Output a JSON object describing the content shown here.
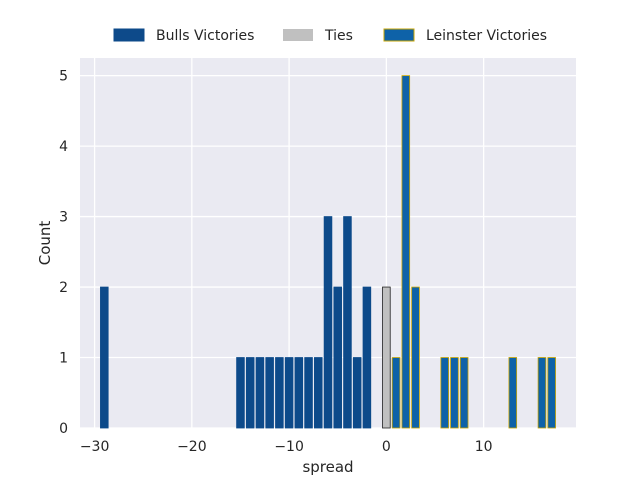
{
  "chart_data": {
    "type": "bar",
    "xlabel": "spread",
    "ylabel": "Count",
    "xlim": [
      -31.5,
      19.5
    ],
    "ylim": [
      0,
      5.25
    ],
    "xticks": [
      -30,
      -20,
      -10,
      0,
      10
    ],
    "xtick_labels": [
      "−30",
      "−20",
      "−10",
      "0",
      "10"
    ],
    "yticks": [
      0,
      1,
      2,
      3,
      4,
      5
    ],
    "ytick_labels": [
      "0",
      "1",
      "2",
      "3",
      "4",
      "5"
    ],
    "grid": true,
    "legend_position": "top",
    "bin_width": 1,
    "series": [
      {
        "name": "Bulls Victories",
        "color": "#0d4a8a",
        "edge_color": "#0d4a8a",
        "x": [
          -29,
          -15,
          -14,
          -13,
          -12,
          -11,
          -10,
          -9,
          -8,
          -7,
          -6,
          -5,
          -4,
          -3,
          -2
        ],
        "values": [
          2,
          1,
          1,
          1,
          1,
          1,
          1,
          1,
          1,
          1,
          3,
          2,
          3,
          1,
          2
        ]
      },
      {
        "name": "Ties",
        "color": "#c0c0c0",
        "edge_color": "#222222",
        "x": [
          0
        ],
        "values": [
          2
        ]
      },
      {
        "name": "Leinster Victories",
        "color": "#0e62a8",
        "edge_color": "#c8a400",
        "x": [
          1,
          2,
          3,
          6,
          7,
          8,
          13,
          16,
          17
        ],
        "values": [
          1,
          5,
          2,
          1,
          1,
          1,
          1,
          1,
          1
        ]
      }
    ]
  }
}
